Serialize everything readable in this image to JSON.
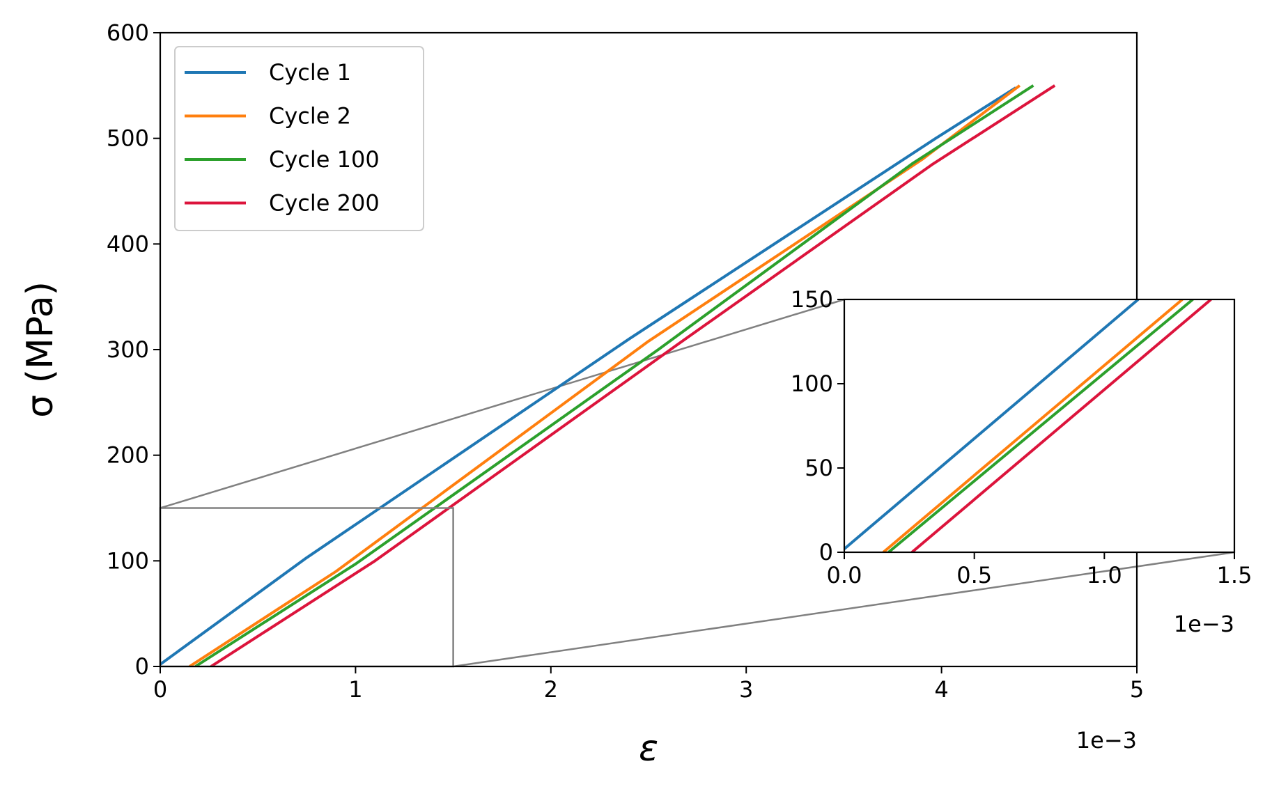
{
  "chart_data": [
    {
      "id": "main",
      "type": "line",
      "title": "",
      "xlabel": "ε",
      "ylabel": "σ (MPa)",
      "x_offset_label": "1e−3",
      "xlim": [
        0,
        5
      ],
      "ylim": [
        0,
        600
      ],
      "xticks": [
        0,
        1,
        2,
        3,
        4,
        5
      ],
      "xtick_labels": [
        "0",
        "1",
        "2",
        "3",
        "4",
        "5"
      ],
      "yticks": [
        0,
        100,
        200,
        300,
        400,
        500,
        600
      ],
      "ytick_labels": [
        "0",
        "100",
        "200",
        "300",
        "400",
        "500",
        "600"
      ],
      "grid": false,
      "legend_position": "upper-left",
      "series": [
        {
          "name": "Cycle 1",
          "color": "#1f77b4",
          "x": [
            0.0,
            0.75,
            2.4,
            3.97,
            4.38
          ],
          "y": [
            2,
            103,
            310,
            500,
            548
          ]
        },
        {
          "name": "Cycle 2",
          "color": "#ff7f0e",
          "x": [
            0.15,
            0.9,
            2.5,
            3.9,
            4.4
          ],
          "y": [
            0,
            90,
            308,
            480,
            550
          ]
        },
        {
          "name": "Cycle 100",
          "color": "#2ca02c",
          "x": [
            0.18,
            1.0,
            2.55,
            3.85,
            4.47
          ],
          "y": [
            0,
            97,
            300,
            476,
            550
          ]
        },
        {
          "name": "Cycle 200",
          "color": "#dc143c",
          "x": [
            0.26,
            1.1,
            2.65,
            3.95,
            4.58
          ],
          "y": [
            0,
            100,
            305,
            475,
            550
          ]
        }
      ],
      "zoom_region": {
        "xlim": [
          0,
          1.5
        ],
        "ylim": [
          0,
          150
        ]
      }
    },
    {
      "id": "inset",
      "type": "line",
      "title": "",
      "xlabel": "",
      "ylabel": "",
      "x_offset_label": "1e−3",
      "xlim": [
        0,
        1.5
      ],
      "ylim": [
        0,
        150
      ],
      "xticks": [
        0,
        0.5,
        1.0,
        1.5
      ],
      "xtick_labels": [
        "0.0",
        "0.5",
        "1.0",
        "1.5"
      ],
      "yticks": [
        0,
        50,
        100,
        150
      ],
      "ytick_labels": [
        "0",
        "50",
        "100",
        "150"
      ],
      "grid": false,
      "series": [
        {
          "name": "Cycle 1",
          "color": "#1f77b4",
          "x": [
            0.0,
            1.13
          ],
          "y": [
            2,
            150
          ]
        },
        {
          "name": "Cycle 2",
          "color": "#ff7f0e",
          "x": [
            0.15,
            1.3
          ],
          "y": [
            0,
            150
          ]
        },
        {
          "name": "Cycle 100",
          "color": "#2ca02c",
          "x": [
            0.17,
            1.34
          ],
          "y": [
            0,
            150
          ]
        },
        {
          "name": "Cycle 200",
          "color": "#dc143c",
          "x": [
            0.26,
            1.41
          ],
          "y": [
            0,
            150
          ]
        }
      ]
    }
  ]
}
